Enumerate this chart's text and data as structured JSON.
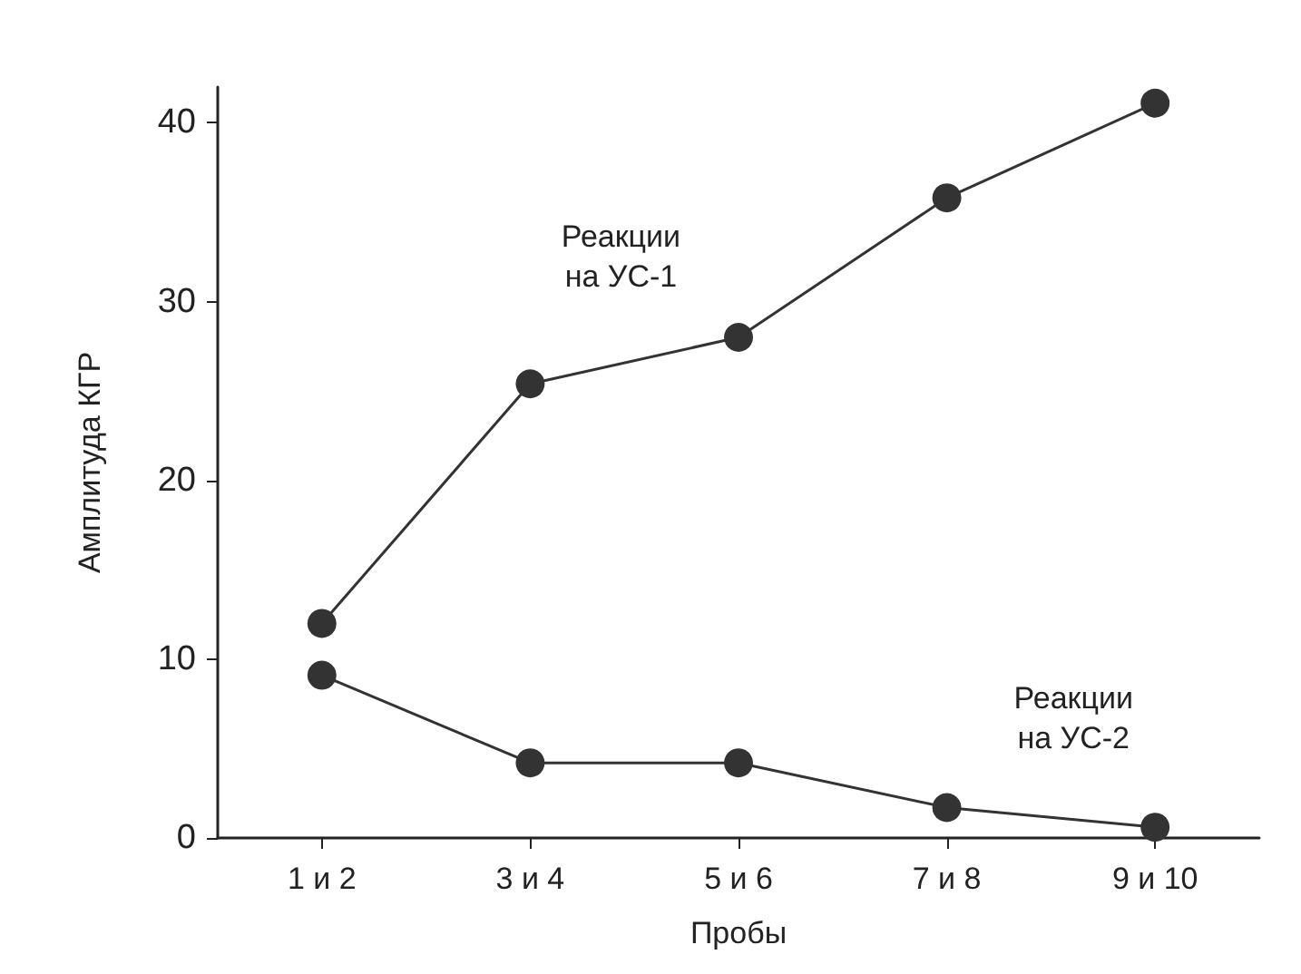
{
  "chart_data": {
    "type": "line",
    "xlabel": "Пробы",
    "ylabel": "Амплитуда КГР",
    "categories": [
      "1 и 2",
      "3 и 4",
      "5 и 6",
      "7 и 8",
      "9 и 10"
    ],
    "series": [
      {
        "name": "Реакции\nна УС-1",
        "color": "#333333",
        "values": [
          12,
          25.4,
          28,
          35.8,
          41.1
        ]
      },
      {
        "name": "Реакции\nна УС-2",
        "color": "#333333",
        "values": [
          9.1,
          4.2,
          4.2,
          1.7,
          0.6
        ]
      }
    ],
    "ylim": [
      0,
      42
    ],
    "yticks": [
      0,
      10,
      20,
      30,
      40
    ],
    "grid": false,
    "marker": "circle",
    "line_style": "solid"
  }
}
